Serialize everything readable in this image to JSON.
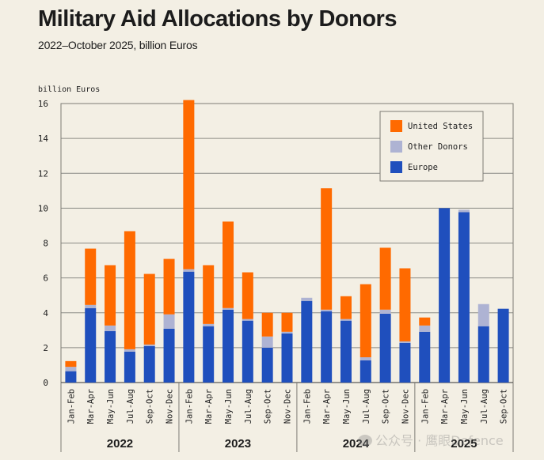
{
  "header": {
    "title": "Military Aid Allocations by Donors",
    "subtitle": "2022–October 2025, billion Euros"
  },
  "watermark": "公众号 · 鹰眼Defence",
  "colors": {
    "background": "#f3efe4",
    "us": "#ff6a00",
    "other": "#aeb3d3",
    "europe": "#1f4fbd",
    "grid": "#8a8a85",
    "frame": "#7d7b75"
  },
  "chart_data": {
    "type": "bar",
    "stacked": true,
    "title": "Military Aid Allocations by Donors",
    "subtitle": "2022–October 2025, billion Euros",
    "ylabel": "billion Euros",
    "xlabel": "",
    "ylim": [
      0,
      16
    ],
    "yticks": [
      0,
      2,
      4,
      6,
      8,
      10,
      12,
      14,
      16
    ],
    "grid": true,
    "legend_position": "top-right",
    "categories": [
      "Jan-Feb",
      "Mar-Apr",
      "May-Jun",
      "Jul-Aug",
      "Sep-Oct",
      "Nov-Dec",
      "Jan-Feb",
      "Mar-Apr",
      "May-Jun",
      "Jul-Aug",
      "Sep-Oct",
      "Nov-Dec",
      "Jan-Feb",
      "Mar-Apr",
      "May-Jun",
      "Jul-Aug",
      "Sep-Oct",
      "Nov-Dec",
      "Jan-Feb",
      "Mar-Apr",
      "May-Jun",
      "Jul-Aug",
      "Sep-Oct"
    ],
    "groups": [
      {
        "label": "2022",
        "count": 6
      },
      {
        "label": "2023",
        "count": 6
      },
      {
        "label": "2024",
        "count": 6
      },
      {
        "label": "2025",
        "count": 5
      }
    ],
    "series": [
      {
        "name": "Europe",
        "key": "europe",
        "values": [
          0.65,
          4.27,
          2.95,
          1.77,
          2.09,
          3.09,
          6.36,
          3.23,
          4.18,
          3.55,
          2.0,
          2.82,
          4.68,
          4.09,
          3.55,
          1.27,
          3.95,
          2.27,
          2.91,
          10.0,
          9.77,
          3.23,
          4.23
        ]
      },
      {
        "name": "Other Donors",
        "key": "other",
        "values": [
          0.25,
          0.18,
          0.32,
          0.14,
          0.09,
          0.82,
          0.14,
          0.13,
          0.09,
          0.09,
          0.64,
          0.09,
          0.18,
          0.09,
          0.09,
          0.18,
          0.23,
          0.09,
          0.36,
          0.0,
          0.14,
          1.27,
          0.0
        ]
      },
      {
        "name": "United States",
        "key": "us",
        "values": [
          0.33,
          3.23,
          3.46,
          6.77,
          4.05,
          3.18,
          9.7,
          3.37,
          4.96,
          2.68,
          1.36,
          1.09,
          0.0,
          6.96,
          1.31,
          4.19,
          3.55,
          4.19,
          0.46,
          0.0,
          0.0,
          0.0,
          0.0
        ]
      }
    ],
    "legend": [
      "United States",
      "Other Donors",
      "Europe"
    ]
  }
}
